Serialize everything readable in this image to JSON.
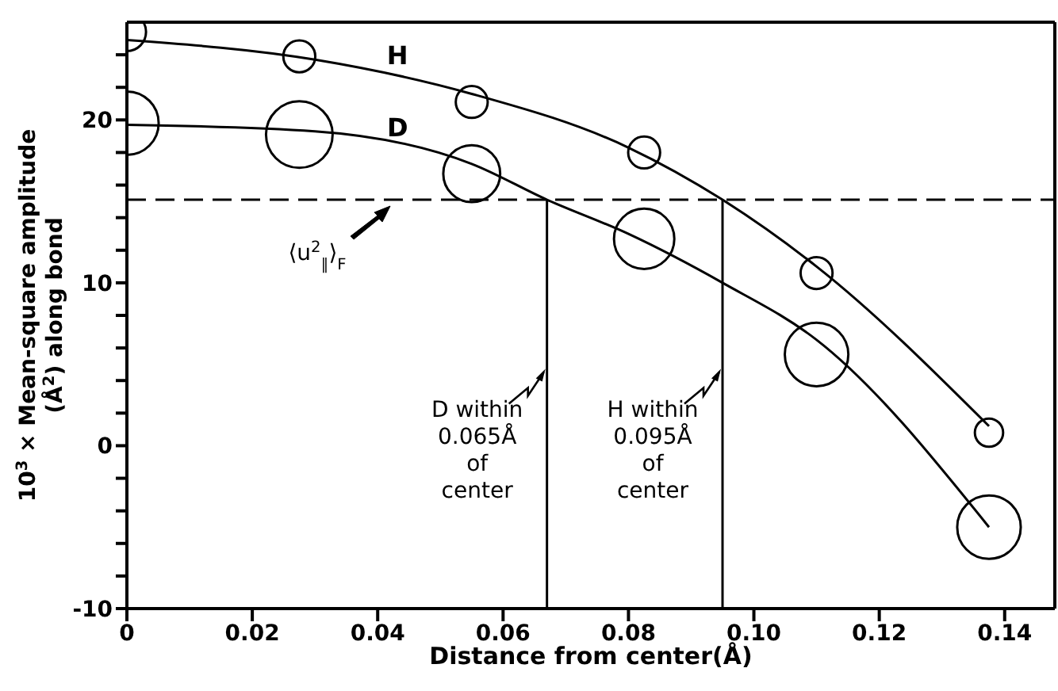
{
  "chart_data": {
    "type": "bubble",
    "xlabel": "Distance from center(Å)",
    "ylabel": "10$^{3}$ × Mean-square amplitude\n(Å$^{2}$) along bond",
    "xlim": [
      0,
      0.148
    ],
    "ylim": [
      -10,
      26
    ],
    "xticks": [
      0,
      0.02,
      0.04,
      0.06,
      0.08,
      {
        "value": 0.1,
        "label": "0.10"
      },
      0.12,
      0.14
    ],
    "yticks": [
      -10,
      {
        "value": -8,
        "label": null
      },
      {
        "value": -6,
        "label": null
      },
      {
        "value": -4,
        "label": null
      },
      {
        "value": -2,
        "label": null
      },
      0,
      {
        "value": 2,
        "label": null
      },
      {
        "value": 4,
        "label": null
      },
      {
        "value": 6,
        "label": null
      },
      {
        "value": 8,
        "label": null
      },
      10,
      {
        "value": 12,
        "label": null
      },
      {
        "value": 14,
        "label": null
      },
      {
        "value": 16,
        "label": null
      },
      {
        "value": 18,
        "label": null
      },
      20,
      {
        "value": 22,
        "label": null
      },
      {
        "value": 24,
        "label": null
      }
    ],
    "grid": false,
    "legend": false,
    "series": [
      {
        "color": "#000000",
        "x": [
          0,
          0.0275,
          0.055,
          0.0825,
          0.11,
          0.1375
        ],
        "values": [
          25.4,
          23.9,
          21.1,
          18.0,
          10.6,
          0.8
        ],
        "sizes": [
          0.33,
          0.23,
          0.23,
          0.23,
          0.23,
          0.18
        ]
      },
      {
        "color": "#000000",
        "x": [
          0,
          0.0275,
          0.055,
          0.0825,
          0.11,
          0.1375
        ],
        "values": [
          19.8,
          19.1,
          16.7,
          12.7,
          5.6,
          -5.0
        ],
        "sizes": [
          0.91,
          1,
          0.73,
          0.82,
          0.91,
          0.91
        ]
      },
      {
        "type": "line",
        "name": "H",
        "color": "#000000",
        "marker": "none",
        "x": [
          0,
          0.03,
          0.055,
          0.08,
          0.095,
          0.11,
          0.1375
        ],
        "values": [
          24.9,
          23.7,
          21.6,
          18.3,
          15.1,
          11.0,
          1.2
        ]
      },
      {
        "type": "line",
        "name": "D",
        "color": "#000000",
        "marker": "none",
        "x": [
          0,
          0.03,
          0.055,
          0.067,
          0.08,
          0.095,
          0.11,
          0.1375
        ],
        "values": [
          19.7,
          19.3,
          17.3,
          15.1,
          13.0,
          10.0,
          6.5,
          -5.0
        ]
      }
    ],
    "ref_lines": [
      {
        "axis": "y",
        "value": 15.1,
        "label": "⟨u$^{2}$$_{∥}$⟩$_{F}$",
        "line_style": "dashed"
      },
      {
        "axis": "x",
        "value": 0.067,
        "label": "D within\n0.065Å\nof\ncenter",
        "line_style": "solid"
      },
      {
        "axis": "x",
        "value": 0.095,
        "label": "H within\n0.095Å\nof\ncenter",
        "line_style": "solid"
      }
    ]
  }
}
